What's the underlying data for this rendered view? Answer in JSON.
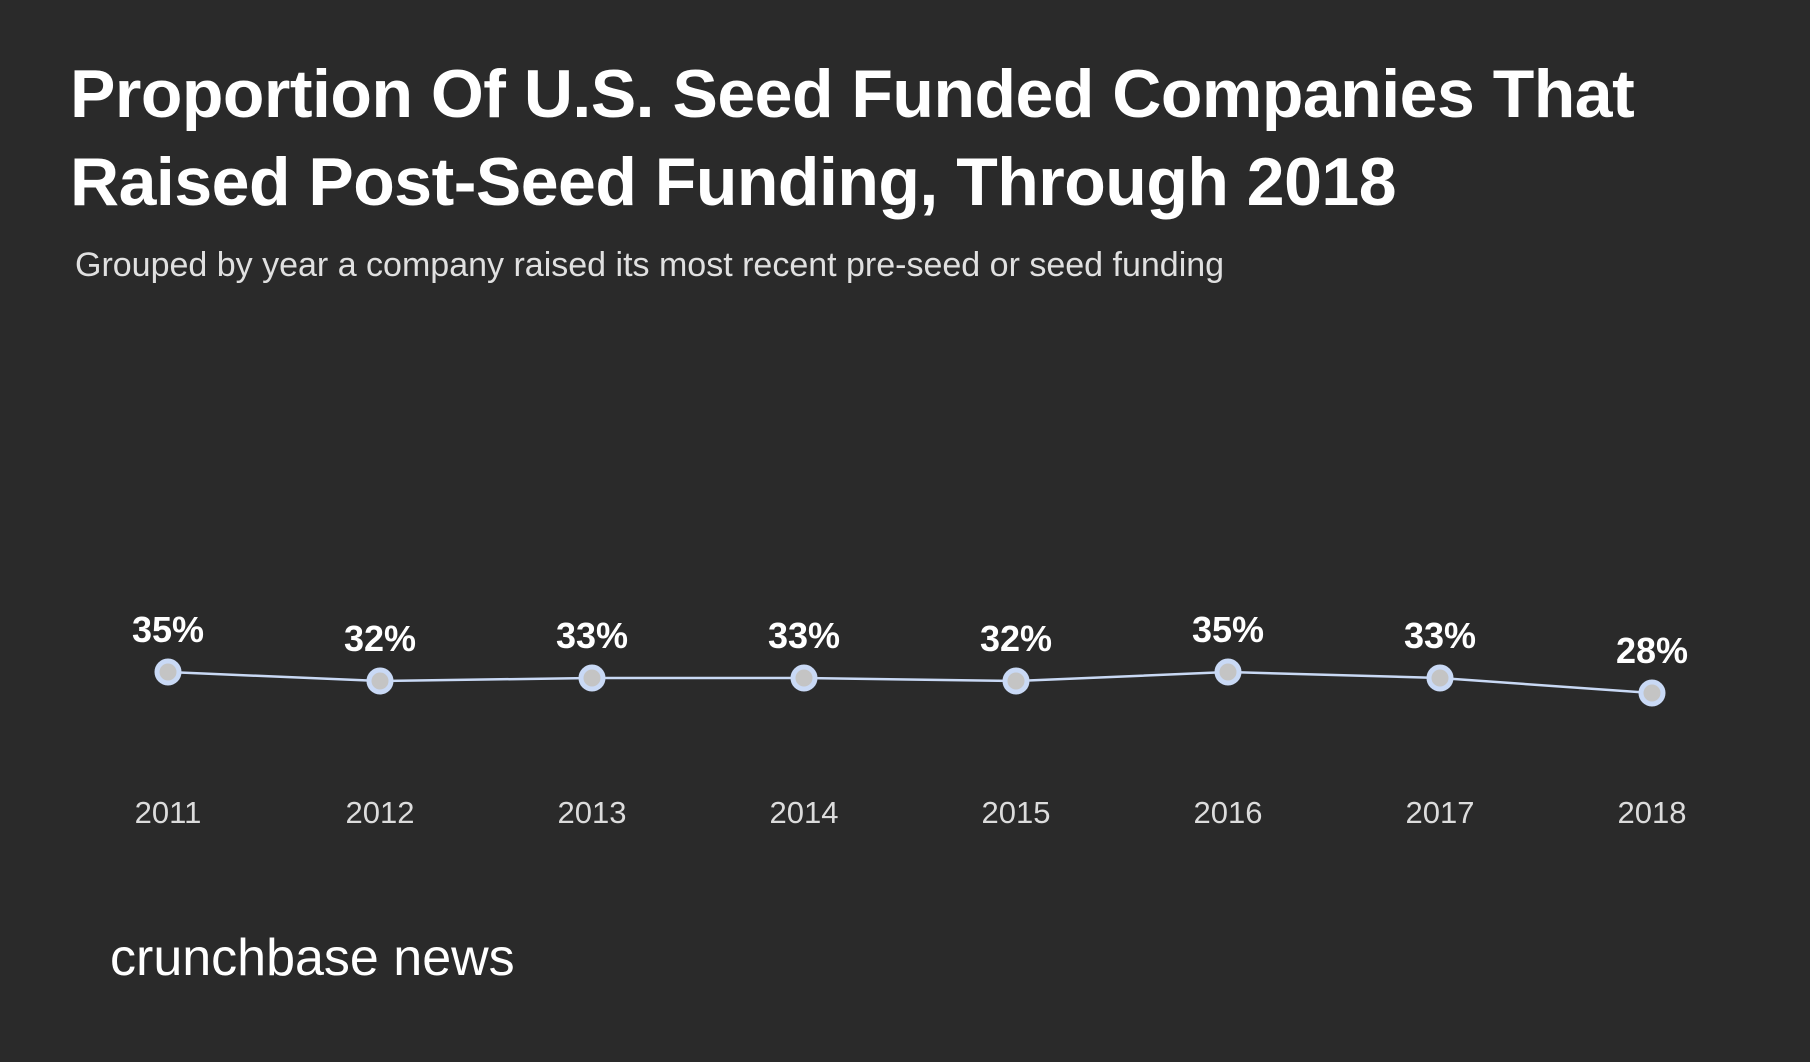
{
  "chart_data": {
    "type": "line",
    "title": "Proportion Of U.S. Seed Funded Companies That Raised Post-Seed Funding, Through 2018",
    "subtitle": "Grouped by year a company raised its most recent pre-seed or seed funding",
    "categories": [
      "2011",
      "2012",
      "2013",
      "2014",
      "2015",
      "2016",
      "2017",
      "2018"
    ],
    "values": [
      35,
      32,
      33,
      33,
      32,
      35,
      33,
      28
    ],
    "data_labels": [
      "35%",
      "32%",
      "33%",
      "33%",
      "32%",
      "35%",
      "33%",
      "28%"
    ],
    "xlabel": "",
    "ylabel": "",
    "grid": false,
    "legend": "none",
    "colors": {
      "line": "#c9d9f5",
      "marker_fill": "#c4c4c4",
      "marker_ring": "#c9d9f5",
      "background": "#2a2a2a"
    }
  },
  "logo": "crunchbase news"
}
